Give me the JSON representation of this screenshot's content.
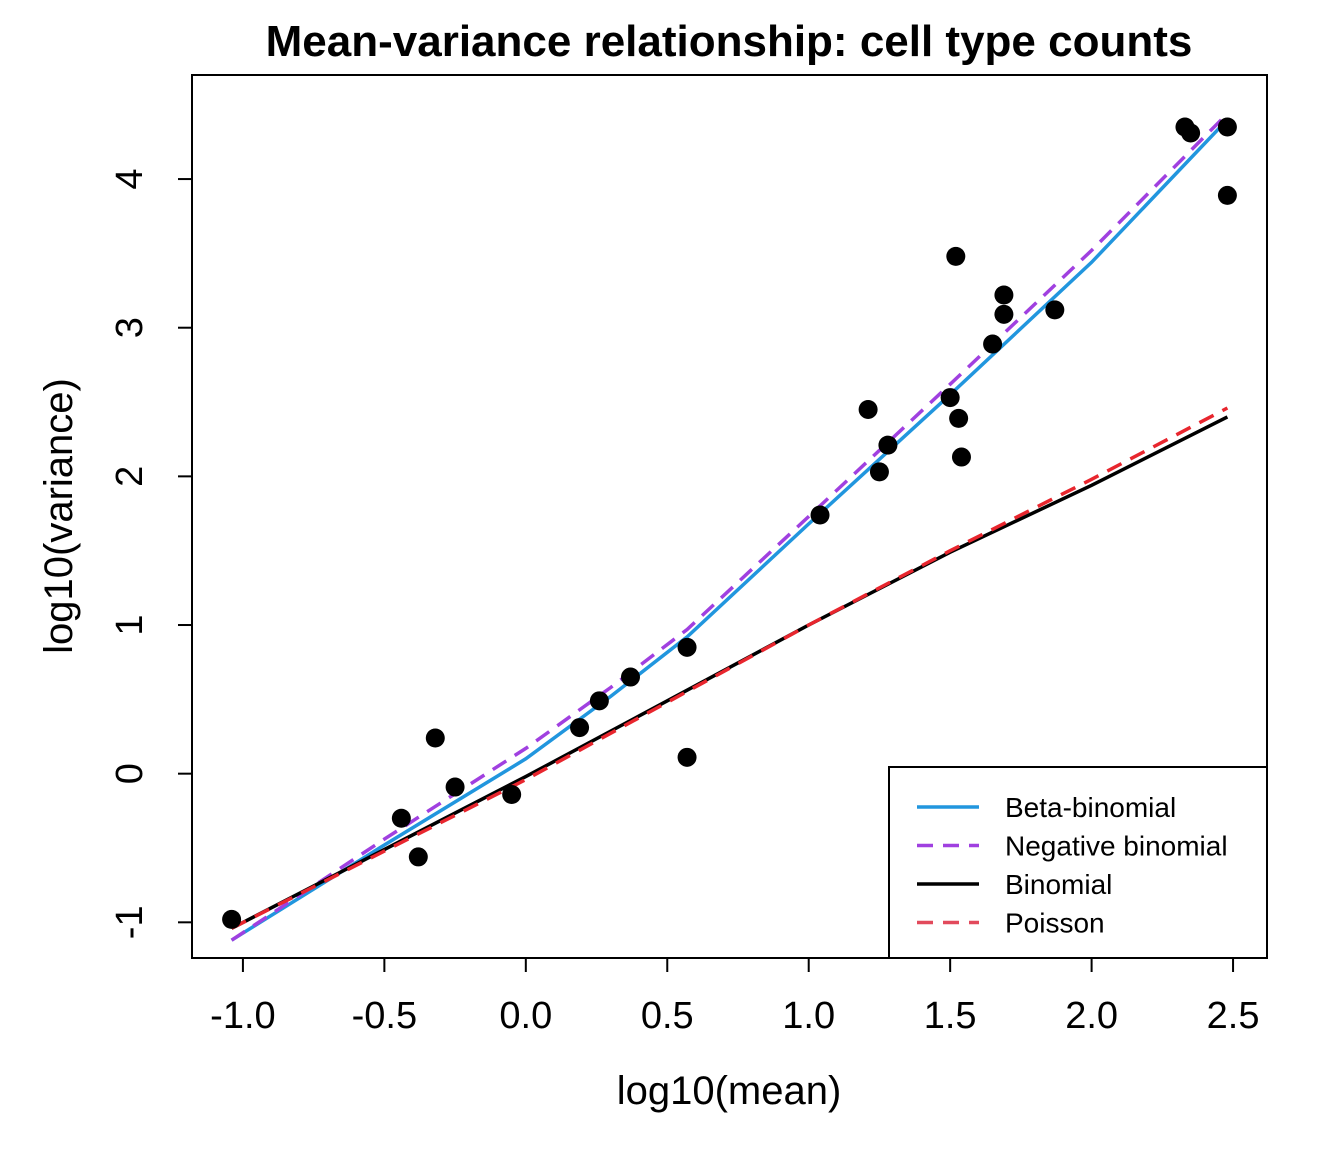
{
  "chart_data": {
    "type": "scatter",
    "title": "Mean-variance relationship: cell type counts",
    "xlabel": "log10(mean)",
    "ylabel": "log10(variance)",
    "xlim": [
      -1.18,
      2.62
    ],
    "ylim": [
      -1.24,
      4.7
    ],
    "x_ticks": [
      -1.0,
      -0.5,
      0.0,
      0.5,
      1.0,
      1.5,
      2.0,
      2.5
    ],
    "x_tick_labels": [
      "-1.0",
      "-0.5",
      "0.0",
      "0.5",
      "1.0",
      "1.5",
      "2.0",
      "2.5"
    ],
    "y_ticks": [
      -1,
      0,
      1,
      2,
      3,
      4
    ],
    "y_tick_labels": [
      "-1",
      "0",
      "1",
      "2",
      "3",
      "4"
    ],
    "grid": false,
    "legend_position": "bottom-right",
    "points": {
      "color": "#000000",
      "x": [
        -1.04,
        -0.44,
        -0.38,
        -0.32,
        -0.25,
        -0.05,
        0.19,
        0.26,
        0.37,
        0.57,
        0.57,
        1.04,
        1.21,
        1.25,
        1.28,
        1.5,
        1.52,
        1.53,
        1.54,
        1.65,
        1.69,
        1.69,
        1.87,
        2.33,
        2.35,
        2.48,
        2.48
      ],
      "y": [
        -0.98,
        -0.3,
        -0.56,
        0.24,
        -0.09,
        -0.14,
        0.31,
        0.49,
        0.65,
        0.85,
        0.11,
        1.74,
        2.45,
        2.03,
        2.21,
        2.53,
        3.48,
        2.39,
        2.13,
        2.89,
        3.22,
        3.09,
        3.12,
        4.35,
        4.31,
        4.35,
        3.89
      ]
    },
    "series": [
      {
        "name": "Beta-binomial",
        "color": "#2196de",
        "dash": "solid",
        "x": [
          -1.04,
          -0.5,
          0.0,
          0.3,
          0.57,
          1.0,
          1.5,
          2.0,
          2.48
        ],
        "y": [
          -1.12,
          -0.48,
          0.1,
          0.52,
          0.92,
          1.68,
          2.55,
          3.44,
          4.4
        ]
      },
      {
        "name": "Negative binomial",
        "color": "#a040e0",
        "dash": "dashed",
        "x": [
          -1.04,
          -0.5,
          0.0,
          0.3,
          0.57,
          1.0,
          1.5,
          2.0,
          2.48
        ],
        "y": [
          -1.12,
          -0.44,
          0.17,
          0.58,
          0.97,
          1.73,
          2.62,
          3.52,
          4.44
        ]
      },
      {
        "name": "Binomial",
        "color": "#000000",
        "dash": "solid",
        "x": [
          -1.04,
          0.0,
          0.5,
          1.0,
          1.5,
          2.0,
          2.48
        ],
        "y": [
          -1.04,
          -0.02,
          0.49,
          1.0,
          1.49,
          1.94,
          2.4
        ]
      },
      {
        "name": "Poisson",
        "color": "#e8262e",
        "dash": "dashed",
        "x": [
          -1.04,
          0.0,
          0.5,
          1.0,
          1.5,
          2.0,
          2.48
        ],
        "y": [
          -1.04,
          -0.04,
          0.48,
          1.0,
          1.5,
          1.98,
          2.46
        ]
      }
    ],
    "legend": [
      {
        "label": "Beta-binomial",
        "color": "#2196de",
        "dash": "solid"
      },
      {
        "label": "Negative binomial",
        "color": "#a040e0",
        "dash": "dashed"
      },
      {
        "label": "Binomial",
        "color": "#000000",
        "dash": "solid"
      },
      {
        "label": "Poisson",
        "color": "#e24a5c",
        "dash": "dashed"
      }
    ]
  }
}
